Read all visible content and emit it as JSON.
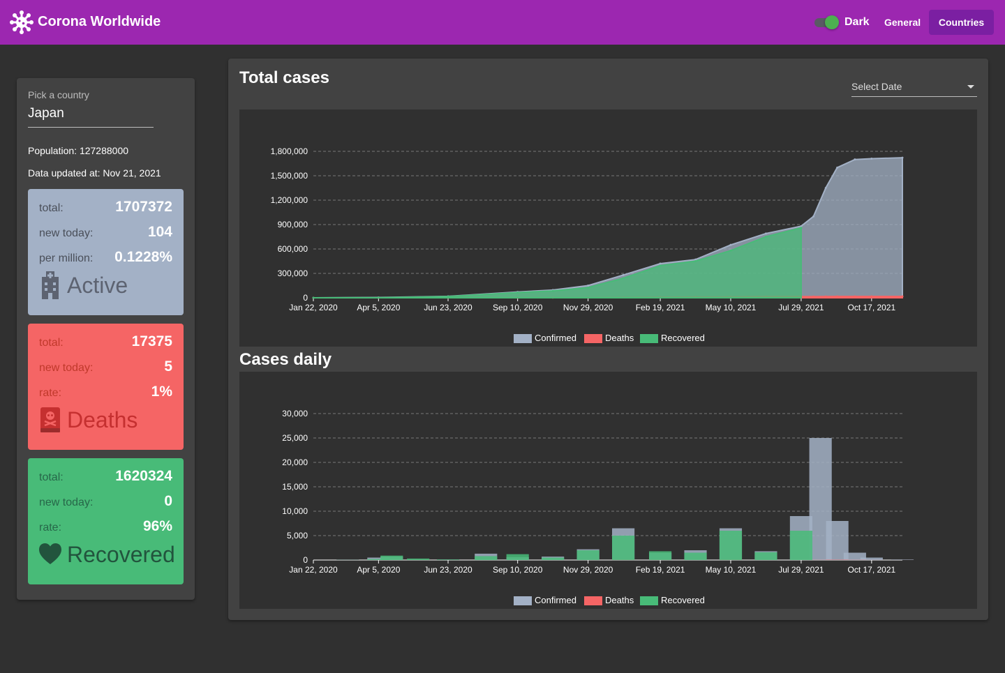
{
  "header": {
    "title": "Corona Worldwide",
    "theme_label": "Dark",
    "theme_dark_enabled": true,
    "nav": {
      "general": "General",
      "countries": "Countries"
    },
    "accent": "#9c27b0"
  },
  "sidebar": {
    "pick_label": "Pick a country",
    "country": "Japan",
    "population_text": "Population: 127288000",
    "updated_text": "Data updated at: Nov 21, 2021",
    "active": {
      "total_label": "total:",
      "total": "1707372",
      "new_label": "new today:",
      "new": "104",
      "third_label": "per million:",
      "third": "0.1228%",
      "name": "Active",
      "icon": "hospital-icon",
      "color": "#a3b1c6"
    },
    "deaths": {
      "total_label": "total:",
      "total": "17375",
      "new_label": "new today:",
      "new": "5",
      "third_label": "rate:",
      "third": "1%",
      "name": "Deaths",
      "icon": "skull-book-icon",
      "color": "#f56565"
    },
    "recovered": {
      "total_label": "total:",
      "total": "1620324",
      "new_label": "new today:",
      "new": "0",
      "third_label": "rate:",
      "third": "96%",
      "name": "Recovered",
      "icon": "heart-icon",
      "color": "#48bb78"
    }
  },
  "main": {
    "total_title": "Total cases",
    "daily_title": "Cases daily",
    "select_date_placeholder": "Select Date"
  },
  "chart_data": [
    {
      "type": "area",
      "x_ticks": [
        "Jan 22, 2020",
        "Apr 5, 2020",
        "Jun 23, 2020",
        "Sep 10, 2020",
        "Nov 29, 2020",
        "Feb 19, 2021",
        "May 10, 2021",
        "Jul 29, 2021",
        "Oct 17, 2021"
      ],
      "y_ticks": [
        "0",
        "300,000",
        "600,000",
        "900,000",
        "1,200,000",
        "1,500,000",
        "1,800,000"
      ],
      "ylim": [
        0,
        1800000
      ],
      "x": [
        "Jan 22, 2020",
        "Apr 5, 2020",
        "Jun 23, 2020",
        "Sep 10, 2020",
        "Oct 20, 2020",
        "Nov 29, 2020",
        "Jan 8, 2021",
        "Feb 19, 2021",
        "Mar 31, 2021",
        "May 10, 2021",
        "Jun 19, 2021",
        "Jul 29, 2021",
        "Aug 12, 2021",
        "Aug 26, 2021",
        "Sep 8, 2021",
        "Sep 28, 2021",
        "Oct 17, 2021",
        "Nov 21, 2021"
      ],
      "series": [
        {
          "name": "Confirmed",
          "color": "#a3b1c6",
          "values": [
            0,
            4500,
            18000,
            72000,
            95000,
            150000,
            280000,
            420000,
            470000,
            650000,
            790000,
            880000,
            1000000,
            1350000,
            1600000,
            1700000,
            1710000,
            1722000
          ]
        },
        {
          "name": "Deaths",
          "color": "#f56565",
          "values": [
            0,
            100,
            970,
            1400,
            1650,
            2100,
            4000,
            7400,
            9300,
            11300,
            14500,
            15100,
            15500,
            16200,
            17000,
            17300,
            17370,
            17375
          ]
        },
        {
          "name": "Recovered",
          "color": "#48bb78",
          "values": [
            0,
            800,
            16000,
            64000,
            85000,
            125000,
            240000,
            395000,
            450000,
            580000,
            750000,
            860000,
            null,
            null,
            null,
            null,
            null,
            null
          ]
        }
      ],
      "legend": [
        "Confirmed",
        "Deaths",
        "Recovered"
      ],
      "legend_position": "bottom",
      "grid": true
    },
    {
      "type": "bar",
      "x_ticks": [
        "Jan 22, 2020",
        "Apr 5, 2020",
        "Jun 23, 2020",
        "Sep 10, 2020",
        "Nov 29, 2020",
        "Feb 19, 2021",
        "May 10, 2021",
        "Jul 29, 2021",
        "Oct 17, 2021"
      ],
      "y_ticks": [
        "0",
        "5,000",
        "10,000",
        "15,000",
        "20,000",
        "25,000",
        "30,000"
      ],
      "ylim": [
        0,
        30000
      ],
      "x": [
        "Jan 22, 2020",
        "Mar 1, 2020",
        "Apr 5, 2020",
        "Apr 20, 2020",
        "May 20, 2020",
        "Jun 23, 2020",
        "Aug 5, 2020",
        "Sep 10, 2020",
        "Oct 20, 2020",
        "Nov 29, 2020",
        "Jan 8, 2021",
        "Feb 19, 2021",
        "Mar 31, 2021",
        "May 10, 2021",
        "Jun 19, 2021",
        "Jul 29, 2021",
        "Aug 20, 2021",
        "Sep 8, 2021",
        "Sep 28, 2021",
        "Oct 17, 2021",
        "Nov 21, 2021"
      ],
      "series": [
        {
          "name": "Confirmed",
          "color": "#a3b1c6",
          "values": [
            0,
            50,
            500,
            700,
            50,
            100,
            1300,
            600,
            700,
            2200,
            6500,
            1500,
            2000,
            6500,
            1800,
            9000,
            25000,
            8000,
            1500,
            500,
            100
          ]
        },
        {
          "name": "Deaths",
          "color": "#f56565",
          "values": [
            0,
            1,
            10,
            20,
            5,
            2,
            10,
            10,
            8,
            30,
            80,
            70,
            30,
            100,
            40,
            15,
            30,
            60,
            30,
            10,
            5
          ]
        },
        {
          "name": "Recovered",
          "color": "#48bb78",
          "values": [
            0,
            20,
            200,
            900,
            300,
            100,
            800,
            1200,
            500,
            2000,
            5000,
            1800,
            1500,
            6000,
            1600,
            6000,
            0,
            0,
            0,
            0,
            0
          ]
        }
      ],
      "legend": [
        "Confirmed",
        "Deaths",
        "Recovered"
      ],
      "legend_position": "bottom",
      "grid": true
    }
  ]
}
